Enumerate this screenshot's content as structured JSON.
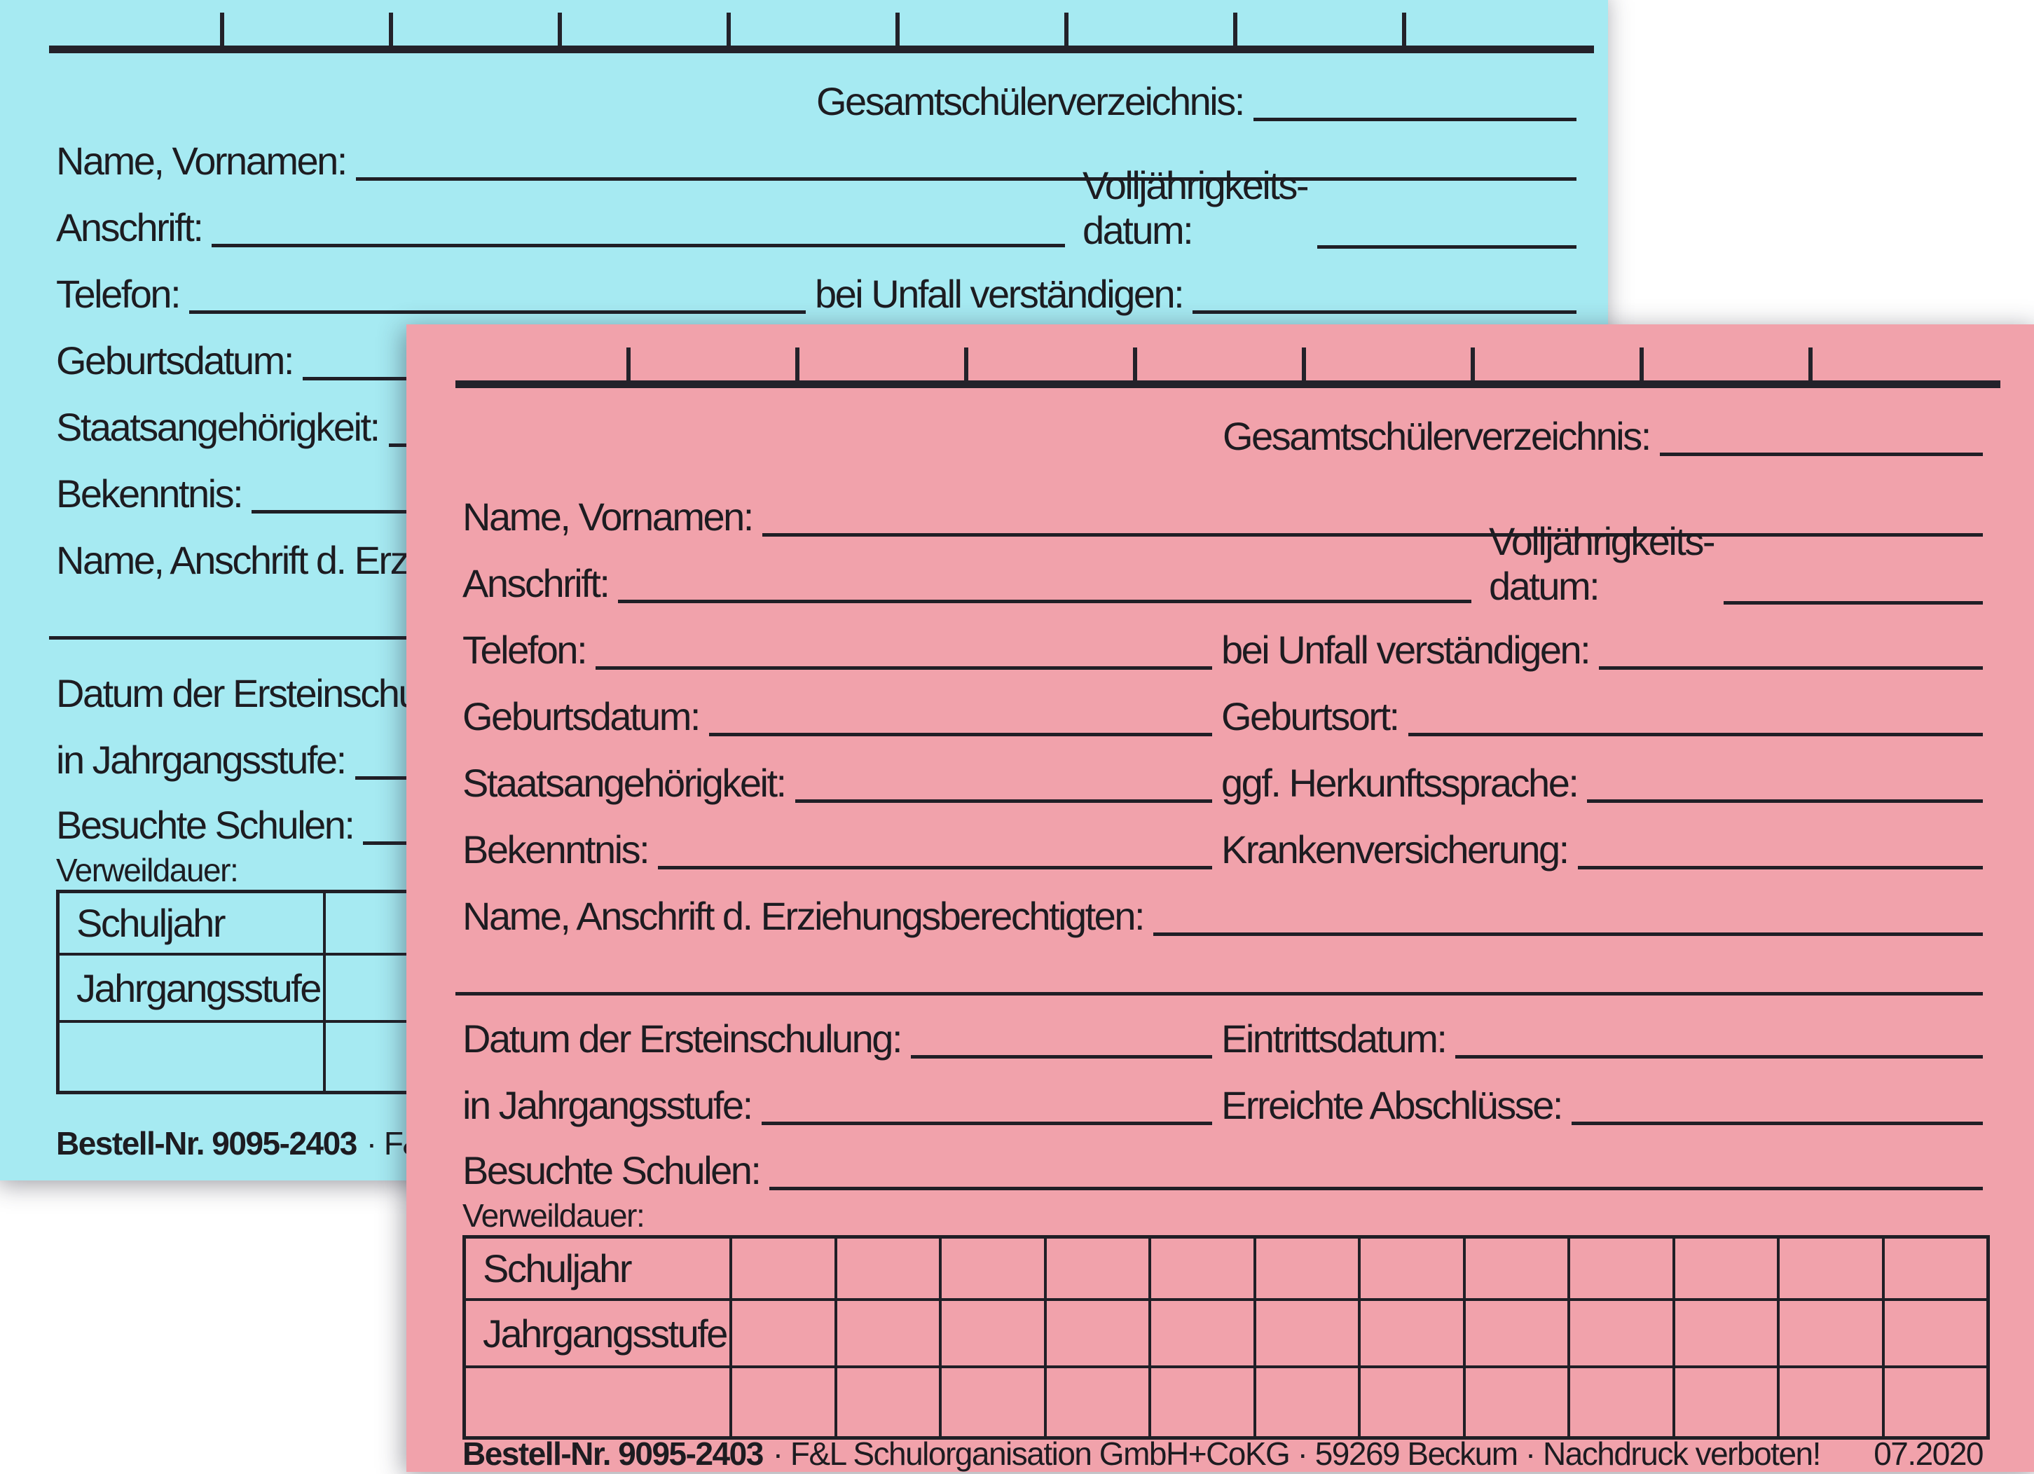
{
  "page": {
    "background": "#ffffff"
  },
  "colors": {
    "blue_card": "#a6eaf2",
    "pink_card": "#f1a2ab",
    "ink": "#1d1c21"
  },
  "card": {
    "title_label": "Gesamtschülerverzeichnis:",
    "fields": {
      "name_vornamen": "Name, Vornamen:",
      "volljaehrigkeit_line1": "Volljährigkeits-",
      "volljaehrigkeit_line2": "datum:",
      "anschrift": "Anschrift:",
      "telefon": "Telefon:",
      "bei_unfall": "bei Unfall verständigen:",
      "geburtsdatum": "Geburtsdatum:",
      "geburtsort": "Geburtsort:",
      "staatsangehoerigkeit": "Staatsangehörigkeit:",
      "herkunftssprache": "ggf. Herkunftssprache:",
      "bekenntnis": "Bekenntnis:",
      "krankenversicherung": "Krankenversicherung:",
      "erziehungsberechtigte": "Name, Anschrift d. Erziehungsberechtigten:",
      "ersteinschulung": "Datum der Ersteinschulung:",
      "eintrittsdatum": "Eintrittsdatum:",
      "in_jahrgangsstufe": "in Jahrgangsstufe:",
      "erreichte_abschluesse": "Erreichte Abschlüsse:",
      "besuchte_schulen": "Besuchte Schulen:",
      "verweildauer": "Verweildauer:"
    },
    "table": {
      "row_labels": [
        "Schuljahr",
        "Jahrgangsstufe"
      ],
      "columns": 12
    },
    "footer": {
      "order_no": "Bestell-Nr. 9095-2403",
      "publisher": "· F&L Schulorganisation GmbH+CoKG · 59269 Beckum · Nachdruck verboten!",
      "edition_date": "07.2020"
    }
  },
  "cards": [
    {
      "name": "blue-card",
      "color": "#a6eaf2"
    },
    {
      "name": "pink-card",
      "color": "#f1a2ab"
    }
  ]
}
